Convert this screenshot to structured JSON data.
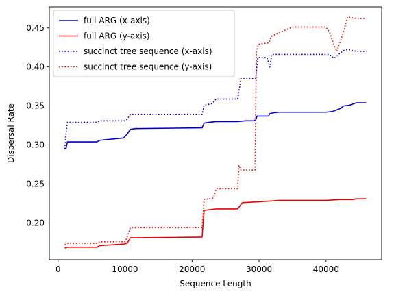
{
  "chart_data": {
    "type": "line",
    "title": "",
    "xlabel": "Sequence Length",
    "ylabel": "Dispersal Rate",
    "xlim": [
      -1300,
      48300
    ],
    "ylim": [
      0.153,
      0.477
    ],
    "xticks": [
      0,
      10000,
      20000,
      30000,
      40000
    ],
    "xtick_labels": [
      "0",
      "10000",
      "20000",
      "30000",
      "40000"
    ],
    "yticks": [
      0.2,
      0.25,
      0.3,
      0.35,
      0.4,
      0.45
    ],
    "ytick_labels": [
      "0.20",
      "0.25",
      "0.30",
      "0.35",
      "0.40",
      "0.45"
    ],
    "grid": false,
    "legend_position": "upper-left",
    "series": [
      {
        "name": "full ARG (x-axis)",
        "color": "#0000cc",
        "style": "solid",
        "x": [
          1000,
          1200,
          1400,
          1600,
          3000,
          5800,
          6200,
          9800,
          10300,
          10800,
          11500,
          21500,
          21800,
          22500,
          23600,
          26800,
          28000,
          29200,
          29500,
          29700,
          31400,
          31600,
          32000,
          33000,
          38000,
          40000,
          41000,
          42200,
          42600,
          43500,
          44500,
          46000
        ],
        "y": [
          0.295,
          0.296,
          0.304,
          0.304,
          0.304,
          0.304,
          0.306,
          0.309,
          0.314,
          0.32,
          0.321,
          0.322,
          0.328,
          0.329,
          0.33,
          0.33,
          0.331,
          0.331,
          0.332,
          0.337,
          0.337,
          0.34,
          0.341,
          0.342,
          0.342,
          0.342,
          0.343,
          0.347,
          0.35,
          0.351,
          0.354,
          0.354
        ]
      },
      {
        "name": "full ARG (y-axis)",
        "color": "#ee0000",
        "style": "solid",
        "x": [
          1000,
          1400,
          5800,
          6200,
          9800,
          10300,
          10800,
          21500,
          21800,
          22500,
          23600,
          26800,
          27500,
          29500,
          29700,
          31400,
          31600,
          33000,
          38000,
          40000,
          42000,
          44000,
          44500,
          46000
        ],
        "y": [
          0.168,
          0.169,
          0.169,
          0.171,
          0.173,
          0.174,
          0.181,
          0.182,
          0.216,
          0.217,
          0.218,
          0.218,
          0.226,
          0.227,
          0.227,
          0.228,
          0.228,
          0.229,
          0.229,
          0.229,
          0.23,
          0.23,
          0.231,
          0.231
        ]
      },
      {
        "name": "succinct tree sequence (x-axis)",
        "color": "#0000cc",
        "style": "dotted",
        "x": [
          1000,
          1200,
          1400,
          5800,
          6200,
          10000,
          10300,
          10800,
          21500,
          21800,
          23000,
          23600,
          26800,
          27300,
          29500,
          29800,
          31200,
          31600,
          31900,
          32500,
          35000,
          40500,
          41200,
          42000,
          42800,
          43500,
          44500,
          46000
        ],
        "y": [
          0.295,
          0.316,
          0.329,
          0.329,
          0.331,
          0.331,
          0.333,
          0.339,
          0.339,
          0.351,
          0.353,
          0.359,
          0.359,
          0.385,
          0.385,
          0.412,
          0.412,
          0.4,
          0.416,
          0.416,
          0.416,
          0.416,
          0.411,
          0.417,
          0.422,
          0.422,
          0.42,
          0.42
        ]
      },
      {
        "name": "succinct tree sequence (y-axis)",
        "color": "#ee0000",
        "style": "dotted",
        "x": [
          1000,
          1400,
          5800,
          6200,
          10000,
          10300,
          10800,
          21500,
          21800,
          23200,
          23600,
          26800,
          27000,
          27300,
          29400,
          29600,
          29900,
          31500,
          31800,
          33000,
          35000,
          40000,
          40500,
          41200,
          41600,
          42600,
          43200,
          44500,
          46000
        ],
        "y": [
          0.172,
          0.174,
          0.174,
          0.176,
          0.176,
          0.182,
          0.194,
          0.194,
          0.23,
          0.232,
          0.244,
          0.244,
          0.274,
          0.268,
          0.268,
          0.42,
          0.429,
          0.431,
          0.439,
          0.444,
          0.451,
          0.451,
          0.445,
          0.428,
          0.42,
          0.444,
          0.464,
          0.462,
          0.462
        ]
      }
    ]
  }
}
